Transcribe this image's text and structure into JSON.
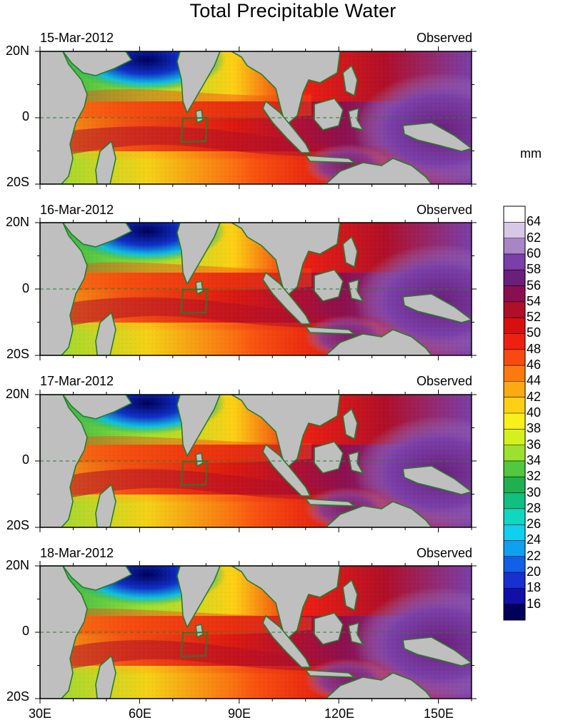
{
  "figure": {
    "title": "Total Precipitable Water",
    "units": "mm"
  },
  "panels": [
    {
      "date": "15-Mar-2012",
      "label": "Observed"
    },
    {
      "date": "16-Mar-2012",
      "label": "Observed"
    },
    {
      "date": "17-Mar-2012",
      "label": "Observed"
    },
    {
      "date": "18-Mar-2012",
      "label": "Observed"
    }
  ],
  "lat_labels": [
    "20N",
    "0",
    "20S"
  ],
  "lon_labels": [
    "30E",
    "60E",
    "90E",
    "120E",
    "150E"
  ],
  "colorbar": {
    "labels": [
      "64",
      "62",
      "60",
      "58",
      "56",
      "54",
      "52",
      "50",
      "48",
      "46",
      "44",
      "42",
      "40",
      "38",
      "36",
      "34",
      "32",
      "30",
      "28",
      "26",
      "24",
      "22",
      "20",
      "18",
      "16"
    ],
    "colors": [
      "#ffffff",
      "#d8c8e6",
      "#a886c6",
      "#7a3fa8",
      "#6a1f7a",
      "#8a0f50",
      "#b00f28",
      "#d80f0f",
      "#f02010",
      "#f84a10",
      "#fa7a10",
      "#fcaa12",
      "#fdd014",
      "#f8f018",
      "#d4f020",
      "#9ce030",
      "#50c840",
      "#20b050",
      "#10c080",
      "#10d8c0",
      "#10d0f0",
      "#10a0f0",
      "#1060e8",
      "#1830d0",
      "#1010a8",
      "#000058"
    ],
    "range": [
      14,
      66
    ]
  },
  "colors": {
    "land": "#bfbfbf",
    "coastline": "#2a7a2a",
    "box": "#2a7a2a",
    "equator_dash": "#2a7a2a"
  },
  "map_extent": {
    "lon": [
      30,
      160
    ],
    "lat": [
      -20,
      20
    ]
  }
}
